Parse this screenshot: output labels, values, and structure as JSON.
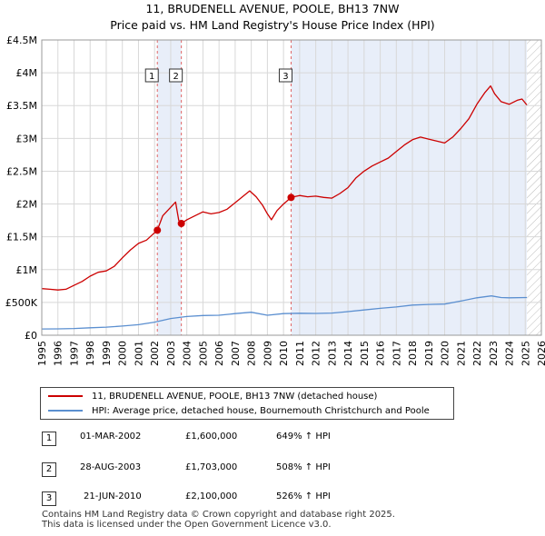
{
  "title_line1": "11, BRUDENELL AVENUE, POOLE, BH13 7NW",
  "title_line2": "Price paid vs. HM Land Registry's House Price Index (HPI)",
  "colors": {
    "property": "#cc0000",
    "hpi": "#5b8fd0",
    "shade": "#e8eef9",
    "grid": "#d8d8d8",
    "marker": "#cc0000"
  },
  "legend": {
    "property_label": "11, BRUDENELL AVENUE, POOLE, BH13 7NW (detached house)",
    "hpi_label": "HPI: Average price, detached house, Bournemouth Christchurch and Poole"
  },
  "sales": [
    {
      "num": "1",
      "date": "01-MAR-2002",
      "price": "£1,600,000",
      "hpi": "649% ↑ HPI"
    },
    {
      "num": "2",
      "date": "28-AUG-2003",
      "price": "£1,703,000",
      "hpi": "508% ↑ HPI"
    },
    {
      "num": "3",
      "date": "21-JUN-2010",
      "price": "£2,100,000",
      "hpi": "526% ↑ HPI"
    }
  ],
  "footer_line1": "Contains HM Land Registry data © Crown copyright and database right 2025.",
  "footer_line2": "This data is licensed under the Open Government Licence v3.0.",
  "chart_data": {
    "type": "line",
    "title": "11, BRUDENELL AVENUE, POOLE, BH13 7NW — Price paid vs. HM Land Registry's House Price Index (HPI)",
    "xlim": [
      1995,
      2026
    ],
    "ylim": [
      0,
      4500000
    ],
    "x_ticks": [
      "1995",
      "1996",
      "1997",
      "1998",
      "1999",
      "2000",
      "2001",
      "2002",
      "2003",
      "2004",
      "2005",
      "2006",
      "2007",
      "2008",
      "2009",
      "2010",
      "2011",
      "2012",
      "2013",
      "2014",
      "2015",
      "2016",
      "2017",
      "2018",
      "2019",
      "2020",
      "2021",
      "2022",
      "2023",
      "2024",
      "2025",
      "2026"
    ],
    "y_ticks": [
      {
        "value": 0,
        "label": "£0"
      },
      {
        "value": 500000,
        "label": "£500K"
      },
      {
        "value": 1000000,
        "label": "£1M"
      },
      {
        "value": 1500000,
        "label": "£1.5M"
      },
      {
        "value": 2000000,
        "label": "£2M"
      },
      {
        "value": 2500000,
        "label": "£2.5M"
      },
      {
        "value": 3000000,
        "label": "£3M"
      },
      {
        "value": 3500000,
        "label": "£3.5M"
      },
      {
        "value": 4000000,
        "label": "£4M"
      },
      {
        "value": 4500000,
        "label": "£4.5M"
      }
    ],
    "shaded_ranges": [
      [
        2002.17,
        2003.66
      ],
      [
        2010.47,
        2025.1
      ]
    ],
    "sale_markers": [
      {
        "num": "1",
        "x": 2002.17,
        "y": 1600000
      },
      {
        "num": "2",
        "x": 2003.66,
        "y": 1703000
      },
      {
        "num": "3",
        "x": 2010.47,
        "y": 2100000
      }
    ],
    "data_end_x": 2025.1,
    "series": [
      {
        "name": "11, BRUDENELL AVENUE, POOLE, BH13 7NW (detached house)",
        "color": "#cc0000",
        "points": [
          [
            1995.0,
            710000
          ],
          [
            1995.5,
            700000
          ],
          [
            1996.0,
            690000
          ],
          [
            1996.5,
            700000
          ],
          [
            1997.0,
            760000
          ],
          [
            1997.5,
            820000
          ],
          [
            1998.0,
            900000
          ],
          [
            1998.5,
            960000
          ],
          [
            1999.0,
            980000
          ],
          [
            1999.5,
            1050000
          ],
          [
            2000.0,
            1180000
          ],
          [
            2000.5,
            1300000
          ],
          [
            2001.0,
            1400000
          ],
          [
            2001.5,
            1450000
          ],
          [
            2002.17,
            1600000
          ],
          [
            2002.5,
            1820000
          ],
          [
            2003.0,
            1950000
          ],
          [
            2003.3,
            2030000
          ],
          [
            2003.5,
            1750000
          ],
          [
            2003.66,
            1703000
          ],
          [
            2004.0,
            1760000
          ],
          [
            2004.5,
            1820000
          ],
          [
            2005.0,
            1880000
          ],
          [
            2005.5,
            1850000
          ],
          [
            2006.0,
            1870000
          ],
          [
            2006.5,
            1920000
          ],
          [
            2007.0,
            2020000
          ],
          [
            2007.5,
            2120000
          ],
          [
            2007.9,
            2200000
          ],
          [
            2008.3,
            2110000
          ],
          [
            2008.7,
            1980000
          ],
          [
            2009.0,
            1850000
          ],
          [
            2009.25,
            1760000
          ],
          [
            2009.6,
            1900000
          ],
          [
            2010.0,
            2000000
          ],
          [
            2010.47,
            2100000
          ],
          [
            2011.0,
            2130000
          ],
          [
            2011.5,
            2110000
          ],
          [
            2012.0,
            2120000
          ],
          [
            2012.5,
            2100000
          ],
          [
            2013.0,
            2090000
          ],
          [
            2013.5,
            2160000
          ],
          [
            2014.0,
            2250000
          ],
          [
            2014.5,
            2400000
          ],
          [
            2015.0,
            2500000
          ],
          [
            2015.5,
            2580000
          ],
          [
            2016.0,
            2640000
          ],
          [
            2016.5,
            2700000
          ],
          [
            2017.0,
            2800000
          ],
          [
            2017.5,
            2900000
          ],
          [
            2018.0,
            2980000
          ],
          [
            2018.5,
            3020000
          ],
          [
            2019.0,
            2990000
          ],
          [
            2019.5,
            2960000
          ],
          [
            2020.0,
            2930000
          ],
          [
            2020.5,
            3020000
          ],
          [
            2021.0,
            3150000
          ],
          [
            2021.5,
            3300000
          ],
          [
            2022.0,
            3520000
          ],
          [
            2022.5,
            3700000
          ],
          [
            2022.85,
            3800000
          ],
          [
            2023.1,
            3680000
          ],
          [
            2023.5,
            3560000
          ],
          [
            2024.0,
            3520000
          ],
          [
            2024.5,
            3580000
          ],
          [
            2024.8,
            3600000
          ],
          [
            2025.1,
            3510000
          ]
        ]
      },
      {
        "name": "HPI: Average price, detached house, Bournemouth Christchurch and Poole",
        "color": "#5b8fd0",
        "points": [
          [
            1995.0,
            95000
          ],
          [
            1996.0,
            97000
          ],
          [
            1997.0,
            103000
          ],
          [
            1998.0,
            113000
          ],
          [
            1999.0,
            123000
          ],
          [
            2000.0,
            140000
          ],
          [
            2001.0,
            160000
          ],
          [
            2002.0,
            200000
          ],
          [
            2003.0,
            255000
          ],
          [
            2004.0,
            285000
          ],
          [
            2005.0,
            300000
          ],
          [
            2006.0,
            305000
          ],
          [
            2007.0,
            330000
          ],
          [
            2008.0,
            350000
          ],
          [
            2009.0,
            305000
          ],
          [
            2010.0,
            330000
          ],
          [
            2011.0,
            335000
          ],
          [
            2012.0,
            332000
          ],
          [
            2013.0,
            338000
          ],
          [
            2014.0,
            360000
          ],
          [
            2015.0,
            385000
          ],
          [
            2016.0,
            410000
          ],
          [
            2017.0,
            430000
          ],
          [
            2018.0,
            460000
          ],
          [
            2019.0,
            470000
          ],
          [
            2020.0,
            475000
          ],
          [
            2021.0,
            520000
          ],
          [
            2022.0,
            570000
          ],
          [
            2022.9,
            600000
          ],
          [
            2023.5,
            575000
          ],
          [
            2024.0,
            570000
          ],
          [
            2025.1,
            575000
          ]
        ]
      }
    ]
  }
}
